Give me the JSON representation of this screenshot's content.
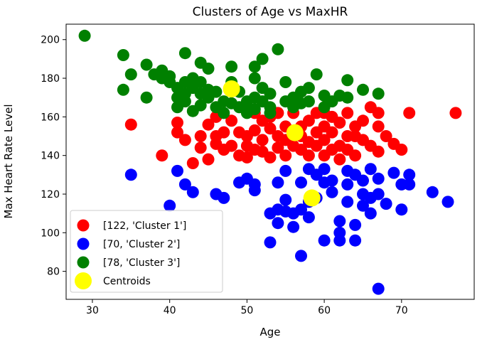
{
  "chart_data": {
    "type": "scatter",
    "title": "Clusters of Age vs MaxHR",
    "xlabel": "Age",
    "ylabel": "Max Heart Rate Level",
    "xlim": [
      26.6,
      79.4
    ],
    "ylim": [
      65.5,
      208
    ],
    "xticks": [
      30,
      40,
      50,
      60,
      70
    ],
    "yticks": [
      80,
      100,
      120,
      140,
      160,
      180,
      200
    ],
    "grid": false,
    "legend_position": "bottom-left",
    "series": [
      {
        "name": "[122, 'Cluster 1']",
        "color": "#ff0000",
        "points": [
          [
            35,
            156
          ],
          [
            39,
            140
          ],
          [
            41,
            157
          ],
          [
            41,
            152
          ],
          [
            42,
            148
          ],
          [
            43,
            136
          ],
          [
            44,
            150
          ],
          [
            44,
            144
          ],
          [
            45,
            138
          ],
          [
            45,
            156
          ],
          [
            46,
            150
          ],
          [
            46,
            160
          ],
          [
            46,
            146
          ],
          [
            47,
            152
          ],
          [
            47,
            143
          ],
          [
            48,
            145
          ],
          [
            48,
            158
          ],
          [
            49,
            140
          ],
          [
            49,
            152
          ],
          [
            50,
            139
          ],
          [
            50,
            150
          ],
          [
            50,
            145
          ],
          [
            51,
            153
          ],
          [
            51,
            143
          ],
          [
            51,
            162
          ],
          [
            52,
            142
          ],
          [
            52,
            148
          ],
          [
            52,
            158
          ],
          [
            53,
            139
          ],
          [
            53,
            160
          ],
          [
            53,
            154
          ],
          [
            54,
            150
          ],
          [
            54,
            144
          ],
          [
            54,
            162
          ],
          [
            55,
            148
          ],
          [
            55,
            140
          ],
          [
            55,
            155
          ],
          [
            56,
            145
          ],
          [
            56,
            162
          ],
          [
            57,
            150
          ],
          [
            57,
            155
          ],
          [
            57,
            143
          ],
          [
            58,
            147
          ],
          [
            58,
            158
          ],
          [
            58,
            140
          ],
          [
            59,
            152
          ],
          [
            59,
            162
          ],
          [
            59,
            145
          ],
          [
            60,
            140
          ],
          [
            60,
            155
          ],
          [
            60,
            148
          ],
          [
            61,
            160
          ],
          [
            61,
            143
          ],
          [
            61,
            152
          ],
          [
            62,
            145
          ],
          [
            62,
            157
          ],
          [
            62,
            138
          ],
          [
            63,
            150
          ],
          [
            63,
            143
          ],
          [
            64,
            155
          ],
          [
            64,
            140
          ],
          [
            65,
            148
          ],
          [
            65,
            158
          ],
          [
            66,
            145
          ],
          [
            66,
            165
          ],
          [
            67,
            155
          ],
          [
            67,
            142
          ],
          [
            68,
            150
          ],
          [
            69,
            146
          ],
          [
            70,
            143
          ],
          [
            71,
            162
          ],
          [
            77,
            162
          ],
          [
            64,
            150
          ],
          [
            60,
            162
          ],
          [
            63,
            162
          ],
          [
            67,
            162
          ]
        ]
      },
      {
        "name": "[70, 'Cluster 2']",
        "color": "#0000ff",
        "points": [
          [
            35,
            130
          ],
          [
            40,
            114
          ],
          [
            41,
            132
          ],
          [
            42,
            125
          ],
          [
            43,
            121
          ],
          [
            46,
            120
          ],
          [
            47,
            118
          ],
          [
            49,
            126
          ],
          [
            50,
            128
          ],
          [
            51,
            125
          ],
          [
            51,
            122
          ],
          [
            53,
            110
          ],
          [
            53,
            95
          ],
          [
            54,
            126
          ],
          [
            54,
            105
          ],
          [
            54,
            112
          ],
          [
            55,
            111
          ],
          [
            55,
            117
          ],
          [
            55,
            132
          ],
          [
            56,
            103
          ],
          [
            56,
            110
          ],
          [
            57,
            88
          ],
          [
            57,
            112
          ],
          [
            57,
            126
          ],
          [
            58,
            133
          ],
          [
            58,
            108
          ],
          [
            59,
            130
          ],
          [
            59,
            118
          ],
          [
            60,
            96
          ],
          [
            60,
            126
          ],
          [
            60,
            133
          ],
          [
            61,
            127
          ],
          [
            62,
            106
          ],
          [
            62,
            100
          ],
          [
            62,
            96
          ],
          [
            63,
            132
          ],
          [
            63,
            125
          ],
          [
            64,
            130
          ],
          [
            64,
            104
          ],
          [
            64,
            96
          ],
          [
            65,
            127
          ],
          [
            65,
            120
          ],
          [
            65,
            114
          ],
          [
            66,
            133
          ],
          [
            66,
            110
          ],
          [
            67,
            128
          ],
          [
            67,
            120
          ],
          [
            67,
            71
          ],
          [
            68,
            115
          ],
          [
            69,
            131
          ],
          [
            70,
            125
          ],
          [
            70,
            112
          ],
          [
            71,
            130
          ],
          [
            71,
            125
          ],
          [
            74,
            121
          ],
          [
            76,
            116
          ],
          [
            63,
            116
          ],
          [
            61,
            121
          ],
          [
            66,
            118
          ],
          [
            58,
            116
          ]
        ]
      },
      {
        "name": "[78, 'Cluster 3']",
        "color": "#008000",
        "points": [
          [
            29,
            202
          ],
          [
            34,
            192
          ],
          [
            34,
            174
          ],
          [
            35,
            182
          ],
          [
            37,
            187
          ],
          [
            37,
            170
          ],
          [
            38,
            182
          ],
          [
            39,
            184
          ],
          [
            39,
            180
          ],
          [
            40,
            181
          ],
          [
            40,
            178
          ],
          [
            41,
            175
          ],
          [
            41,
            170
          ],
          [
            41,
            165
          ],
          [
            42,
            193
          ],
          [
            42,
            178
          ],
          [
            42,
            172
          ],
          [
            42,
            168
          ],
          [
            43,
            180
          ],
          [
            43,
            175
          ],
          [
            43,
            163
          ],
          [
            44,
            188
          ],
          [
            44,
            178
          ],
          [
            44,
            172
          ],
          [
            44,
            166
          ],
          [
            45,
            185
          ],
          [
            45,
            174
          ],
          [
            45,
            170
          ],
          [
            46,
            173
          ],
          [
            46,
            165
          ],
          [
            47,
            168
          ],
          [
            48,
            186
          ],
          [
            48,
            178
          ],
          [
            48,
            167
          ],
          [
            49,
            173
          ],
          [
            49,
            165
          ],
          [
            50,
            168
          ],
          [
            50,
            163
          ],
          [
            51,
            186
          ],
          [
            51,
            180
          ],
          [
            51,
            170
          ],
          [
            51,
            164
          ],
          [
            52,
            190
          ],
          [
            52,
            175
          ],
          [
            52,
            168
          ],
          [
            53,
            172
          ],
          [
            53,
            165
          ],
          [
            54,
            195
          ],
          [
            55,
            178
          ],
          [
            55,
            168
          ],
          [
            56,
            170
          ],
          [
            56,
            165
          ],
          [
            57,
            173
          ],
          [
            57,
            167
          ],
          [
            58,
            175
          ],
          [
            58,
            168
          ],
          [
            59,
            182
          ],
          [
            60,
            171
          ],
          [
            60,
            165
          ],
          [
            61,
            168
          ],
          [
            62,
            171
          ],
          [
            63,
            179
          ],
          [
            63,
            170
          ],
          [
            65,
            174
          ],
          [
            67,
            172
          ],
          [
            47,
            162
          ],
          [
            50,
            162
          ],
          [
            53,
            162
          ]
        ]
      },
      {
        "name": "Centroids",
        "color": "#ffff00",
        "points": [
          [
            48,
            174.5
          ],
          [
            56.2,
            151.8
          ],
          [
            58.4,
            118
          ]
        ]
      }
    ]
  }
}
